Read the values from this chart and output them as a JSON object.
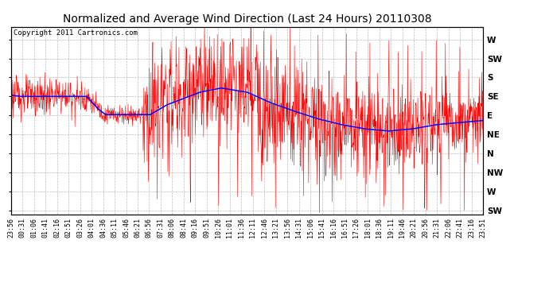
{
  "title": "Normalized and Average Wind Direction (Last 24 Hours) 20110308",
  "copyright_text": "Copyright 2011 Cartronics.com",
  "background_color": "#ffffff",
  "plot_bg_color": "#ffffff",
  "grid_color": "#aaaaaa",
  "y_labels": [
    "W",
    "SW",
    "S",
    "SE",
    "E",
    "NE",
    "N",
    "NW",
    "W",
    "SW"
  ],
  "y_ticks": [
    360,
    315,
    270,
    225,
    180,
    135,
    90,
    45,
    0,
    -45
  ],
  "ylim": [
    -55,
    390
  ],
  "x_tick_labels": [
    "23:56",
    "00:31",
    "01:06",
    "01:41",
    "02:16",
    "02:51",
    "03:26",
    "04:01",
    "04:36",
    "05:11",
    "05:46",
    "06:21",
    "06:56",
    "07:31",
    "08:06",
    "08:41",
    "09:16",
    "09:51",
    "10:26",
    "11:01",
    "11:36",
    "12:11",
    "12:46",
    "13:21",
    "13:56",
    "14:31",
    "15:06",
    "15:41",
    "16:16",
    "16:51",
    "17:26",
    "18:01",
    "18:36",
    "19:11",
    "19:46",
    "20:21",
    "20:56",
    "21:31",
    "22:06",
    "22:41",
    "23:16",
    "23:51"
  ],
  "red_color": "#ff0000",
  "blue_color": "#0000ff",
  "title_fontsize": 10,
  "copyright_fontsize": 6.5,
  "tick_fontsize": 6,
  "y_label_fontsize": 7.5
}
